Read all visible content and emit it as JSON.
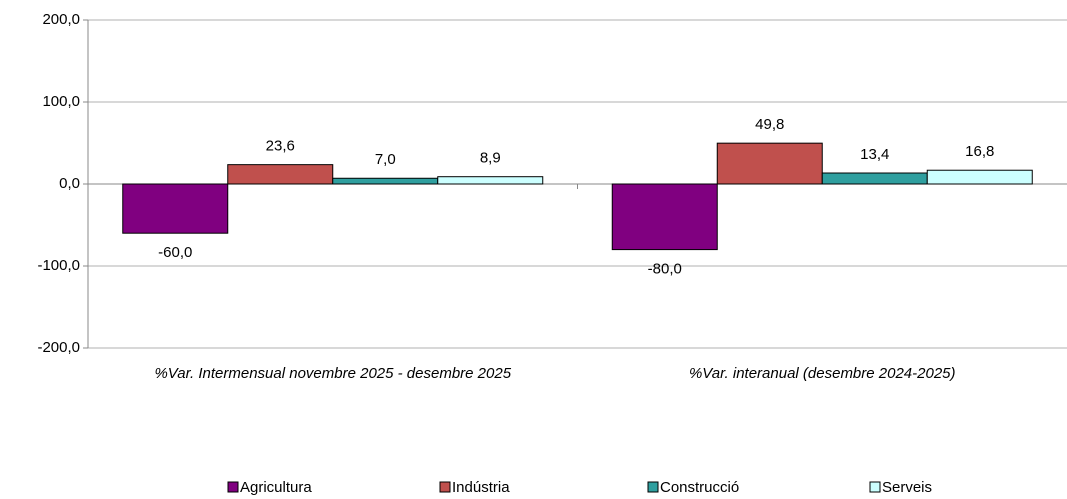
{
  "chart_data": {
    "type": "bar",
    "categories": [
      "%Var. Intermensual novembre 2025 - desembre 2025",
      "%Var. interanual (desembre 2024-2025)"
    ],
    "series": [
      {
        "name": "Agricultura",
        "color": "#800080",
        "values": [
          -60.0,
          -80.0
        ],
        "value_labels": [
          "-60,0",
          "-80,0"
        ]
      },
      {
        "name": "Indústria",
        "color": "#c0504d",
        "values": [
          23.6,
          49.8
        ],
        "value_labels": [
          "23,6",
          "49,8"
        ]
      },
      {
        "name": "Construcció",
        "color": "#2f9f9f",
        "values": [
          7.0,
          13.4
        ],
        "value_labels": [
          "7,0",
          "13,4"
        ]
      },
      {
        "name": "Serveis",
        "color": "#ccffff",
        "values": [
          8.9,
          16.8
        ],
        "value_labels": [
          "8,9",
          "16,8"
        ]
      }
    ],
    "ylim": [
      -200,
      200
    ],
    "yticks": [
      {
        "value": -200,
        "label": "-200,0"
      },
      {
        "value": -100,
        "label": "-100,0"
      },
      {
        "value": 0,
        "label": "0,0"
      },
      {
        "value": 100,
        "label": "100,0"
      },
      {
        "value": 200,
        "label": "200,0"
      }
    ],
    "grid": true
  }
}
